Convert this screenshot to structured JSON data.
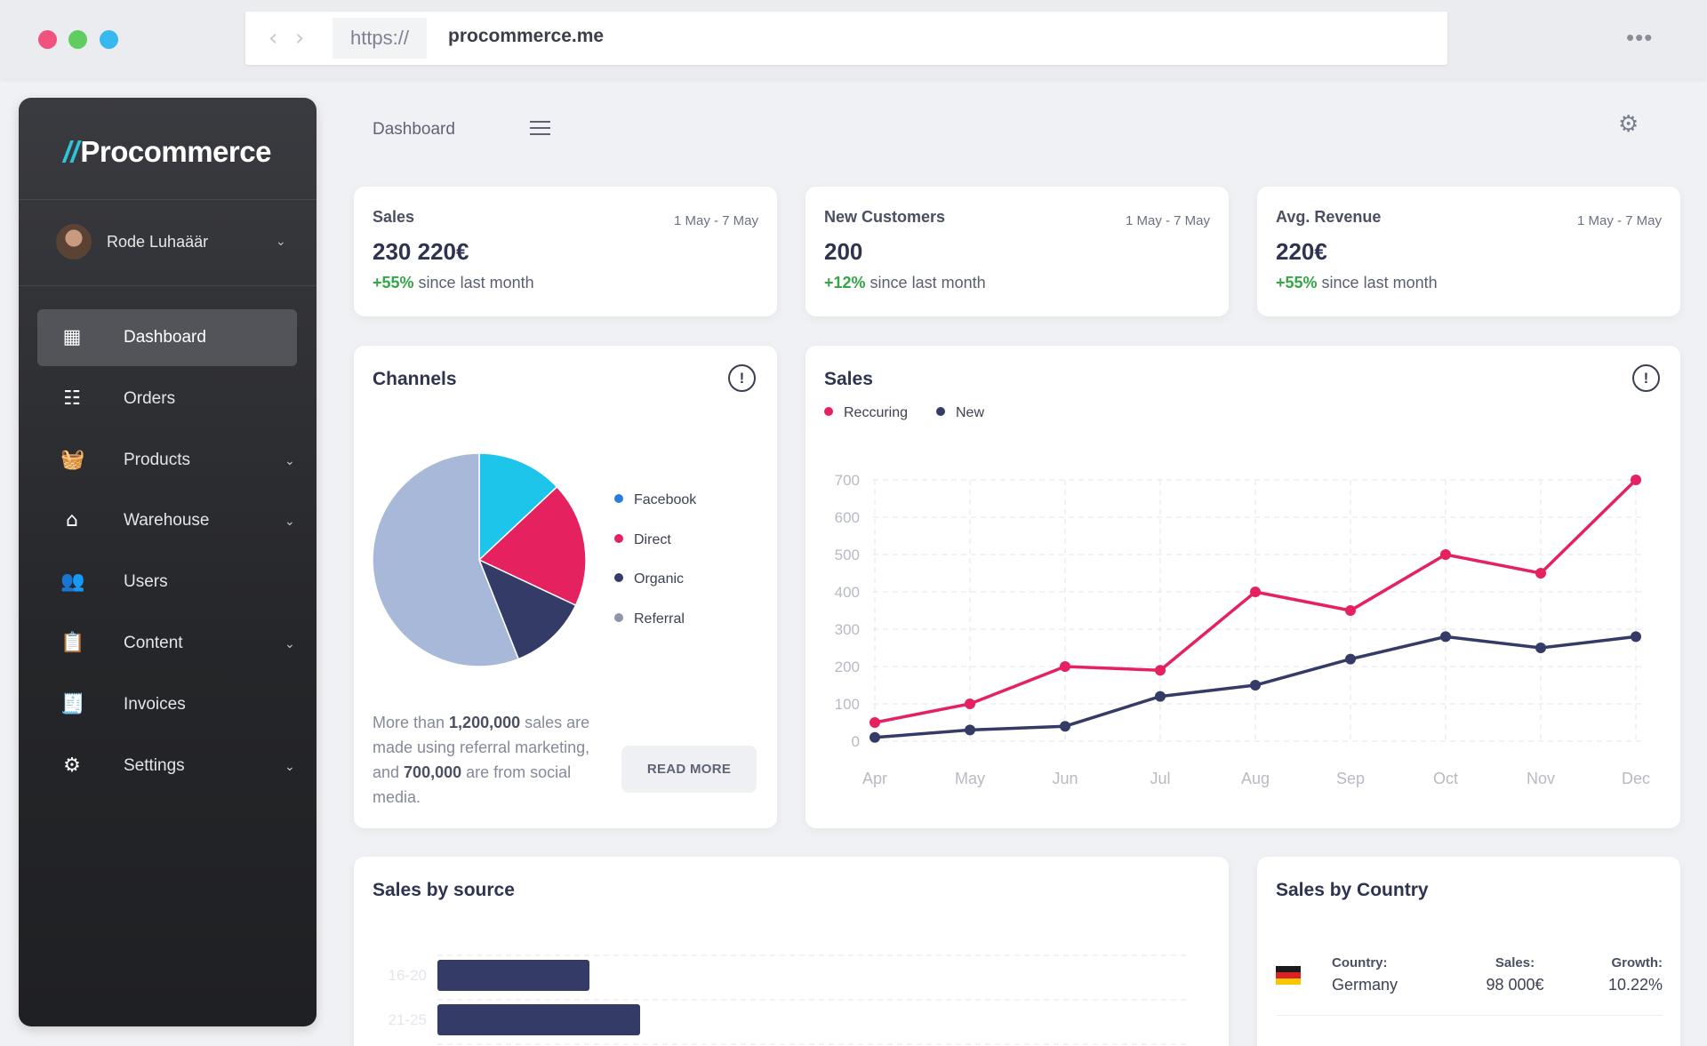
{
  "browser": {
    "protocol": "https://",
    "domain": "procommerce.me",
    "back_icon": "chevron-left-icon",
    "forward_icon": "chevron-right-icon",
    "more_icon": "more-horizontal-icon"
  },
  "sidebar": {
    "logo_mark": "//",
    "logo_text": "Procommerce",
    "user_name": "Rode Luhaäär",
    "items": [
      {
        "label": "Dashboard",
        "icon": "dashboard-icon",
        "active": true,
        "has_children": false
      },
      {
        "label": "Orders",
        "icon": "orders-icon",
        "active": false,
        "has_children": false
      },
      {
        "label": "Products",
        "icon": "basket-icon",
        "active": false,
        "has_children": true
      },
      {
        "label": "Warehouse",
        "icon": "warehouse-icon",
        "active": false,
        "has_children": true
      },
      {
        "label": "Users",
        "icon": "users-icon",
        "active": false,
        "has_children": false
      },
      {
        "label": "Content",
        "icon": "content-icon",
        "active": false,
        "has_children": true
      },
      {
        "label": "Invoices",
        "icon": "invoice-icon",
        "active": false,
        "has_children": false
      },
      {
        "label": "Settings",
        "icon": "gear-icon",
        "active": false,
        "has_children": true
      }
    ]
  },
  "header": {
    "breadcrumb": "Dashboard"
  },
  "stats": [
    {
      "title": "Sales",
      "date": "1 May - 7 May",
      "value": "230 220€",
      "change": "+55%",
      "change_text": " since last month"
    },
    {
      "title": "New Customers",
      "date": "1 May - 7 May",
      "value": "200",
      "change": "+12%",
      "change_text": " since last month"
    },
    {
      "title": "Avg. Revenue",
      "date": "1 May - 7 May",
      "value": "220€",
      "change": "+55%",
      "change_text": " since last month"
    }
  ],
  "channels": {
    "title": "Channels",
    "info": "!",
    "desc_1": "More than ",
    "desc_b1": "1,200,000",
    "desc_2": " sales are made using referral marketing, and ",
    "desc_b2": "700,000",
    "desc_3": " are from social media.",
    "read_more": "READ MORE"
  },
  "sales_chart": {
    "title": "Sales",
    "info": "!"
  },
  "sales_by_source": {
    "title": "Sales by source"
  },
  "sales_by_country": {
    "title": "Sales by Country",
    "rows": [
      {
        "country_label": "Country:",
        "country": "Germany",
        "sales_label": "Sales:",
        "sales": "98 000€",
        "growth_label": "Growth:",
        "growth": "10.22%"
      }
    ]
  },
  "colors": {
    "reccuring": "#e5215f",
    "new": "#343b66",
    "facebook": "#1ec5ea",
    "direct": "#e5215f",
    "organic": "#343b66",
    "referral": "#a8b8d8",
    "legend_facebook": "#2b7de0",
    "legend_referral": "#8f95a6",
    "positive": "#33a645"
  },
  "chart_data": [
    {
      "type": "pie",
      "labels": [
        "Facebook",
        "Direct",
        "Organic",
        "Referral"
      ],
      "values": [
        13,
        19,
        12,
        56
      ]
    },
    {
      "type": "line",
      "categories": [
        "Apr",
        "May",
        "Jun",
        "Jul",
        "Aug",
        "Sep",
        "Oct",
        "Nov",
        "Dec"
      ],
      "series": [
        {
          "name": "Reccuring",
          "values": [
            50,
            100,
            200,
            190,
            400,
            350,
            500,
            450,
            700
          ]
        },
        {
          "name": "New",
          "values": [
            10,
            30,
            40,
            120,
            150,
            220,
            280,
            250,
            280
          ]
        }
      ],
      "ylim": [
        0,
        700
      ],
      "yticks": [
        0,
        100,
        200,
        300,
        400,
        500,
        600,
        700
      ],
      "grid": true,
      "legend": "top-left"
    },
    {
      "type": "bar",
      "orientation": "horizontal",
      "categories": [
        "16-20",
        "21-25"
      ],
      "values": [
        30,
        40
      ],
      "grid": true
    }
  ]
}
